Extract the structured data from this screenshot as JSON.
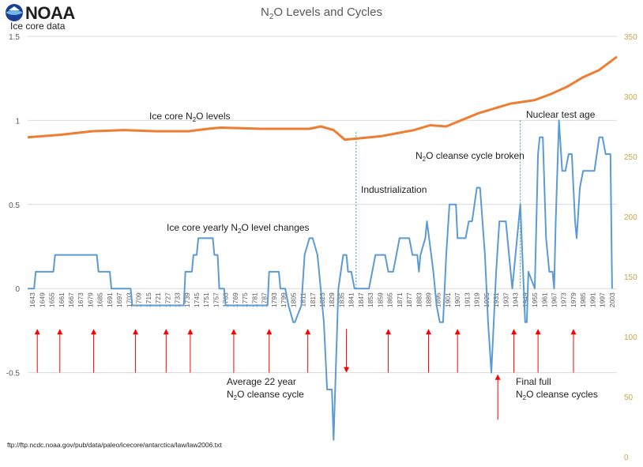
{
  "brand": {
    "name": "NOAA"
  },
  "chart_data": {
    "type": "line",
    "title": "N2O Levels and Cycles",
    "title_base": "N",
    "title_sub": "2",
    "title_rest": "O Levels and Cycles",
    "left_axis_label": "Ice core data",
    "left_ylim": [
      -1,
      1.5
    ],
    "left_ticks": [
      "1.5",
      "1",
      "0.5",
      "0",
      "-0.5"
    ],
    "right_ylim": [
      0,
      350
    ],
    "right_ticks": [
      "350",
      "300",
      "250",
      "200",
      "150",
      "100",
      "50",
      "0"
    ],
    "xlim": [
      1640,
      2006
    ],
    "x_ticks": [
      "1643",
      "1649",
      "1655",
      "1661",
      "1667",
      "1673",
      "1679",
      "1685",
      "1691",
      "1697",
      "1703",
      "1709",
      "1715",
      "1721",
      "1727",
      "1733",
      "1739",
      "1745",
      "1751",
      "1757",
      "1763",
      "1769",
      "1775",
      "1781",
      "1787",
      "1793",
      "1799",
      "1805",
      "1811",
      "1817",
      "1823",
      "1829",
      "1835",
      "1841",
      "1847",
      "1853",
      "1859",
      "1865",
      "1871",
      "1877",
      "1883",
      "1889",
      "1895",
      "1901",
      "1907",
      "1913",
      "1919",
      "1925",
      "1931",
      "1937",
      "1943",
      "1949",
      "1955",
      "1961",
      "1967",
      "1973",
      "1979",
      "1985",
      "1991",
      "1997",
      "2003"
    ],
    "grid": true,
    "series": [
      {
        "key": "levels",
        "axis": "right",
        "color": "#ed7d31",
        "x": [
          1640,
          1660,
          1680,
          1700,
          1720,
          1740,
          1752,
          1760,
          1785,
          1800,
          1815,
          1822,
          1830,
          1837,
          1845,
          1860,
          1880,
          1890,
          1900,
          1920,
          1930,
          1940,
          1955,
          1965,
          1975,
          1985,
          1995,
          2006
        ],
        "y": [
          266,
          268,
          271,
          272,
          271,
          271,
          273,
          274,
          273,
          273,
          273,
          275,
          272,
          264,
          265,
          267,
          272,
          276,
          275,
          286,
          290,
          294,
          297,
          302,
          308,
          316,
          322,
          333
        ]
      },
      {
        "key": "changes",
        "axis": "left",
        "color": "#5b9bd5",
        "x": [
          1640,
          1644,
          1645,
          1656,
          1657,
          1683,
          1684,
          1691,
          1692,
          1704,
          1705,
          1710,
          1711,
          1726,
          1727,
          1737,
          1738,
          1742,
          1743,
          1745,
          1746,
          1755,
          1756,
          1758,
          1759,
          1762,
          1763,
          1789,
          1790,
          1796,
          1797,
          1800,
          1802,
          1805,
          1806,
          1810,
          1812,
          1815,
          1817,
          1820,
          1822,
          1824,
          1826,
          1829,
          1830,
          1831,
          1833,
          1836,
          1838,
          1839,
          1841,
          1843,
          1844,
          1846,
          1852,
          1854,
          1856,
          1862,
          1864,
          1867,
          1869,
          1871,
          1877,
          1879,
          1882,
          1883,
          1884,
          1887,
          1888,
          1892,
          1894,
          1896,
          1898,
          1900,
          1902,
          1906,
          1907,
          1910,
          1912,
          1914,
          1916,
          1919,
          1921,
          1924,
          1926,
          1928,
          1931,
          1933,
          1935,
          1937,
          1939,
          1941,
          1944,
          1946,
          1949,
          1950,
          1951,
          1955,
          1957,
          1958,
          1960,
          1962,
          1964,
          1966,
          1967,
          1968,
          1970,
          1972,
          1974,
          1976,
          1978,
          1980,
          1981,
          1983,
          1985,
          1988,
          1989,
          1992,
          1995,
          1997,
          1999,
          2000,
          2002,
          2003
        ],
        "y": [
          0,
          0,
          0.1,
          0.1,
          0.2,
          0.2,
          0.1,
          0.1,
          0,
          0,
          -0.1,
          -0.1,
          -0.1,
          -0.1,
          -0.1,
          -0.1,
          0.1,
          0.1,
          0.2,
          0.2,
          0.3,
          0.3,
          0.2,
          0.2,
          0,
          0,
          -0.1,
          -0.1,
          0.1,
          0.1,
          0,
          0,
          -0.1,
          -0.2,
          -0.2,
          -0.1,
          0.2,
          0.3,
          0.3,
          0.2,
          0,
          -0.2,
          -0.6,
          -0.6,
          -0.9,
          -0.6,
          0,
          0.2,
          0.2,
          0.1,
          0.1,
          0,
          0,
          0,
          0,
          0.1,
          0.2,
          0.2,
          0.1,
          0.1,
          0.2,
          0.3,
          0.3,
          0.2,
          0.2,
          0.1,
          0.2,
          0.3,
          0.4,
          0.1,
          -0.1,
          -0.2,
          -0.2,
          0.2,
          0.5,
          0.5,
          0.3,
          0.3,
          0.3,
          0.4,
          0.4,
          0.6,
          0.6,
          0.2,
          -0.2,
          -0.5,
          0.1,
          0.4,
          0.4,
          0.4,
          0.2,
          0,
          0.3,
          0.5,
          -0.2,
          -0.2,
          0.1,
          0,
          0.8,
          0.9,
          0.9,
          0.3,
          0.1,
          0.1,
          0,
          0.4,
          1,
          0.7,
          0.7,
          0.8,
          0.8,
          0.4,
          0.3,
          0.6,
          0.7,
          0.7,
          0.7,
          0.7,
          0.9,
          0.9,
          0.8,
          0.8,
          0.8,
          0
        ]
      }
    ],
    "cycle_arrows_up": [
      1646,
      1660,
      1681,
      1707,
      1726,
      1741,
      1768,
      1790,
      1814,
      1864,
      1889,
      1907,
      1942,
      1957,
      1979
    ],
    "cycle_arrow_down": 1838,
    "cycle_arrow_long_up": 1932,
    "dotted_markers": [
      {
        "x": 1844,
        "y_top": 0.93
      },
      {
        "x": 1946,
        "y_top": 1.0
      }
    ],
    "annotations": {
      "ice_levels": {
        "pre": "Ice core N",
        "sub": "2",
        "post": "O levels"
      },
      "nuclear": "Nuclear test age",
      "cleanse_broken": {
        "pre": "N",
        "sub": "2",
        "post": "O cleanse cycle broken"
      },
      "industrialization": "Industrialization",
      "yearly_changes": {
        "pre": "Ice core yearly N",
        "sub": "2",
        "post": "O level changes"
      },
      "average_cycle_line1": "Average 22 year",
      "average_cycle_line2": {
        "pre": "N",
        "sub": "2",
        "post": "O cleanse cycle"
      },
      "final_line1": "Final full",
      "final_line2": {
        "pre": "N",
        "sub": "2",
        "post": "O cleanse cycles"
      }
    },
    "arrow_color": "#ff0000",
    "source": "ftp://ftp.ncdc.noaa.gov/pub/data/paleo/icecore/antarctica/law/law2006.txt"
  }
}
